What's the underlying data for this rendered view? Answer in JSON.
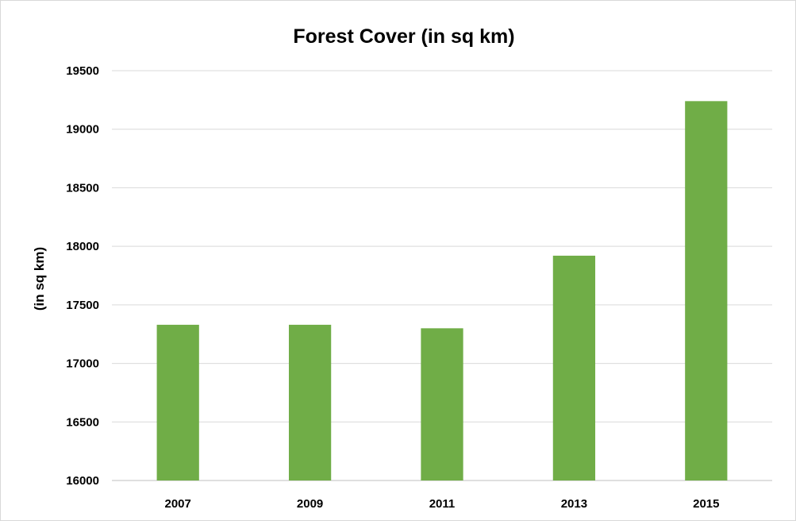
{
  "chart_data": {
    "type": "bar",
    "title": "Forest Cover (in sq km)",
    "xlabel": "",
    "ylabel": "(in sq km)",
    "categories": [
      "2007",
      "2009",
      "2011",
      "2013",
      "2015"
    ],
    "values": [
      17330,
      17330,
      17300,
      17920,
      19240
    ],
    "ylim": [
      16000,
      19500
    ],
    "yticks": [
      "16000",
      "16500",
      "17000",
      "17500",
      "18000",
      "18500",
      "19000",
      "19500"
    ],
    "grid": true,
    "legend": "none",
    "bar_color": "#70ad47",
    "grid_color": "#d9d9d9"
  }
}
